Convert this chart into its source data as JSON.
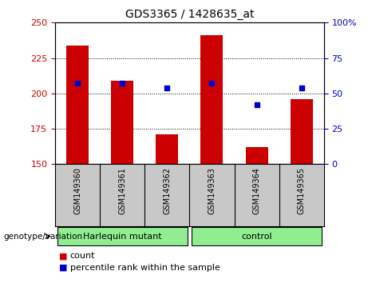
{
  "title": "GDS3365 / 1428635_at",
  "samples": [
    "GSM149360",
    "GSM149361",
    "GSM149362",
    "GSM149363",
    "GSM149364",
    "GSM149365"
  ],
  "counts": [
    234,
    209,
    171,
    241,
    162,
    196
  ],
  "percentiles": [
    57,
    57,
    54,
    57,
    42,
    54
  ],
  "left_ylim": [
    150,
    250
  ],
  "left_yticks": [
    150,
    175,
    200,
    225,
    250
  ],
  "right_ylim": [
    0,
    100
  ],
  "right_yticks": [
    0,
    25,
    50,
    75,
    100
  ],
  "right_yticklabels": [
    "0",
    "25",
    "50",
    "75",
    "100%"
  ],
  "bar_color": "#cc0000",
  "dot_color": "#0000cc",
  "groups": [
    {
      "label": "Harlequin mutant",
      "start": 0,
      "end": 2,
      "color": "#90ee90"
    },
    {
      "label": "control",
      "start": 3,
      "end": 5,
      "color": "#90ee90"
    }
  ],
  "group_label": "genotype/variation",
  "legend_items": [
    {
      "label": "count",
      "color": "#cc0000"
    },
    {
      "label": "percentile rank within the sample",
      "color": "#0000cc"
    }
  ],
  "plot_bg_color": "#ffffff",
  "xtick_bg_color": "#c8c8c8",
  "bar_width": 0.5
}
